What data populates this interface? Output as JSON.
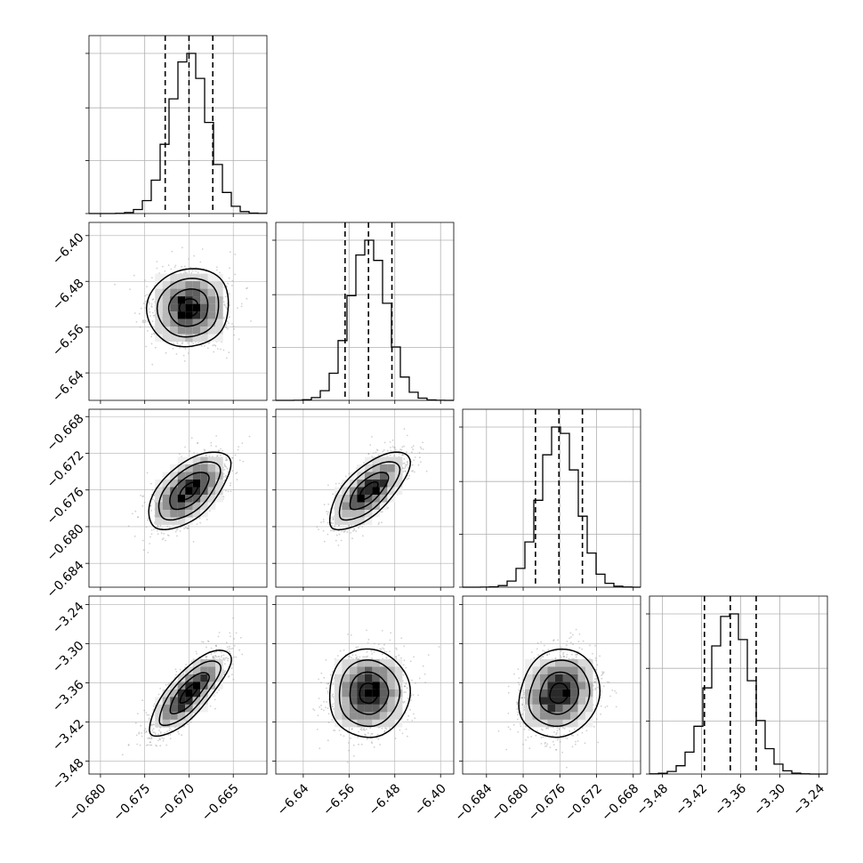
{
  "figure": {
    "type": "corner-plot",
    "n_parameters": 4,
    "grid": true,
    "colors": {
      "line": "#000000",
      "grid": "#b0b0b0",
      "scatter": "#9a9a9a",
      "density_levels": [
        "#f0f0f0",
        "#d9d9d9",
        "#b8b8b8",
        "#8f8f8f",
        "#5f5f5f",
        "#2a2a2a",
        "#000000"
      ]
    }
  },
  "chart_data": [
    {
      "type": "histogram",
      "panel": "p0",
      "x_ticks": [
        "-0.680",
        "-0.675",
        "-0.670",
        "-0.665"
      ],
      "xlim": [
        -0.6813,
        -0.6612
      ],
      "mean": -0.67,
      "sd": 0.0021,
      "quantiles": [
        -0.6727,
        -0.67,
        -0.6675
      ],
      "ymax_frac": 1.0
    },
    {
      "type": "histogram",
      "panel": "p1",
      "x_ticks": [
        "-6.64",
        "-6.56",
        "-6.48",
        "-6.40"
      ],
      "xlim": [
        -6.688,
        -6.377
      ],
      "mean": -6.526,
      "sd": 0.032,
      "quantiles": [
        -6.56,
        -6.526,
        -6.49
      ],
      "ymax_frac": 1.0
    },
    {
      "type": "histogram",
      "panel": "p2",
      "x_ticks": [
        "-0.684",
        "-0.680",
        "-0.676",
        "-0.672",
        "-0.668"
      ],
      "xlim": [
        -0.6866,
        -0.6672
      ],
      "mean": -0.6761,
      "sd": 0.002,
      "quantiles": [
        -0.6781,
        -0.6761,
        -0.6742
      ],
      "ymax_frac": 1.0
    },
    {
      "type": "histogram",
      "panel": "p3",
      "x_ticks": [
        "-3.48",
        "-3.42",
        "-3.36",
        "-3.30",
        "-3.24"
      ],
      "xlim": [
        -3.5,
        -3.227
      ],
      "mean": -3.376,
      "sd": 0.031,
      "quantiles": [
        -3.409,
        -3.376,
        -3.344
      ],
      "ymax_frac": 1.0
    },
    {
      "type": "density",
      "panel": "p0-p1",
      "x_param": 0,
      "y_param": 1,
      "correlation": 0.05,
      "y_ticks": [
        "-6.40",
        "-6.48",
        "-6.56",
        "-6.64"
      ]
    },
    {
      "type": "density",
      "panel": "p0-p2",
      "x_param": 0,
      "y_param": 2,
      "correlation": 0.6,
      "y_ticks": [
        "-0.668",
        "-0.672",
        "-0.676",
        "-0.680",
        "-0.684"
      ]
    },
    {
      "type": "density",
      "panel": "p1-p2",
      "x_param": 1,
      "y_param": 2,
      "correlation": 0.7,
      "y_ticks": []
    },
    {
      "type": "density",
      "panel": "p0-p3",
      "x_param": 0,
      "y_param": 3,
      "correlation": 0.8,
      "y_ticks": [
        "-3.24",
        "-3.30",
        "-3.36",
        "-3.42",
        "-3.48"
      ]
    },
    {
      "type": "density",
      "panel": "p1-p3",
      "x_param": 1,
      "y_param": 3,
      "correlation": 0.05,
      "y_ticks": []
    },
    {
      "type": "density",
      "panel": "p2-p3",
      "x_param": 2,
      "y_param": 3,
      "correlation": 0.15,
      "y_ticks": []
    }
  ],
  "parameters": [
    {
      "xlim": [
        -0.6813,
        -0.6612
      ],
      "mean": -0.67,
      "sd": 0.0021,
      "ticks": [
        -0.68,
        -0.675,
        -0.67,
        -0.665
      ],
      "tick_labels": [
        "−0.680",
        "−0.675",
        "−0.670",
        "−0.665"
      ]
    },
    {
      "xlim": [
        -6.688,
        -6.377
      ],
      "mean": -6.526,
      "sd": 0.032,
      "ticks": [
        -6.64,
        -6.56,
        -6.48,
        -6.4
      ],
      "tick_labels": [
        "−6.64",
        "−6.56",
        "−6.48",
        "−6.40"
      ]
    },
    {
      "xlim": [
        -0.6866,
        -0.6672
      ],
      "mean": -0.6761,
      "sd": 0.002,
      "ticks": [
        -0.684,
        -0.68,
        -0.676,
        -0.672,
        -0.668
      ],
      "tick_labels": [
        "−0.684",
        "−0.680",
        "−0.676",
        "−0.672",
        "−0.668"
      ]
    },
    {
      "xlim": [
        -3.5,
        -3.227
      ],
      "mean": -3.376,
      "sd": 0.031,
      "ticks": [
        -3.48,
        -3.42,
        -3.36,
        -3.3,
        -3.24
      ],
      "tick_labels": [
        "−3.48",
        "−3.42",
        "−3.36",
        "−3.30",
        "−3.24"
      ]
    }
  ],
  "correlations": {
    "0-1": 0.05,
    "0-2": 0.6,
    "1-2": 0.7,
    "0-3": 0.8,
    "1-3": 0.05,
    "2-3": 0.15
  }
}
